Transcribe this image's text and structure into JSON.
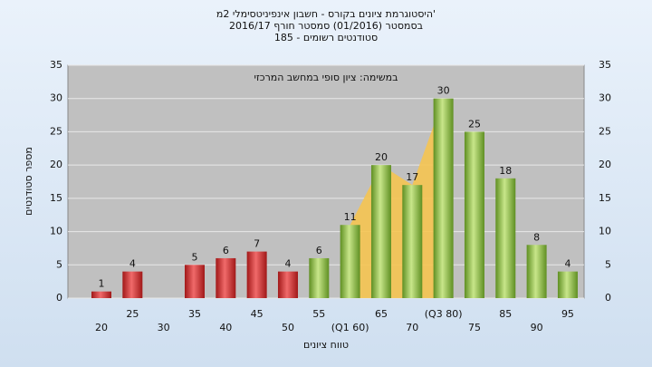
{
  "chart_data": {
    "type": "bar",
    "title": [
      "היסטוגרמת ציונים בקורס - חשבון אינפיניטסימלי 2מ'",
      "בסמסטר (01/2016) סמסטר חורף 2016/17",
      "סטודנטים רשומים - 185"
    ],
    "annotation": "במשימה: ציון סופי במחשב המרכזי",
    "y_label": "מספר סטודנטים",
    "x_label": "טווח ציונים",
    "categories": [
      "20",
      "25",
      "30",
      "35",
      "40",
      "45",
      "50",
      "55",
      "(Q1 60)",
      "65",
      "70",
      "(Q3 80)",
      "75",
      "85",
      "90",
      "95"
    ],
    "series": [
      {
        "color": "#d83a3a",
        "values": [
          1,
          4,
          null,
          5,
          6,
          7,
          4,
          null,
          null,
          null,
          null,
          null,
          null,
          null,
          null,
          null
        ]
      },
      {
        "color": "#8dbf3f",
        "values": [
          null,
          null,
          null,
          null,
          null,
          null,
          null,
          6,
          11,
          20,
          17,
          30,
          25,
          18,
          8,
          4
        ]
      }
    ],
    "ylim": [
      0,
      35
    ],
    "yticks": [
      0,
      5,
      10,
      15,
      20,
      25,
      30,
      35
    ],
    "grid": true
  }
}
